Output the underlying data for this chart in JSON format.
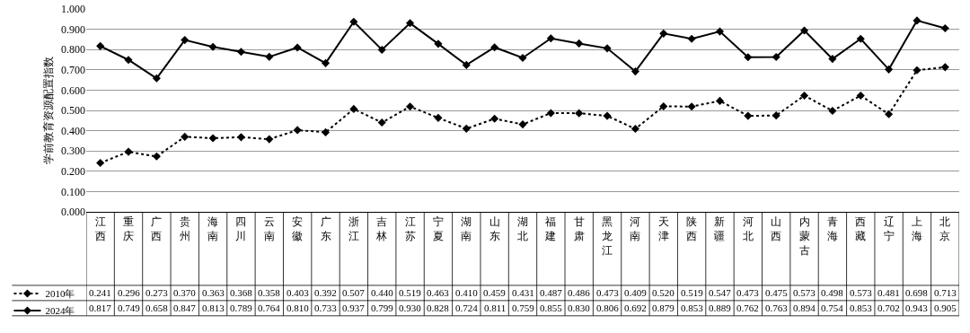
{
  "chart_data": {
    "type": "line",
    "ylabel": "学前教育资源配置指数",
    "categories": [
      "江西",
      "重庆",
      "广西",
      "贵州",
      "海南",
      "四川",
      "云南",
      "安徽",
      "广东",
      "浙江",
      "吉林",
      "江苏",
      "宁夏",
      "湖南",
      "山东",
      "湖北",
      "福建",
      "甘肃",
      "黑龙江",
      "河南",
      "天津",
      "陕西",
      "新疆",
      "河北",
      "山西",
      "内蒙古",
      "青海",
      "西藏",
      "辽宁",
      "上海",
      "北京"
    ],
    "series": [
      {
        "name": "2010年",
        "color": "#000000",
        "line_style": "dotted",
        "values": [
          0.241,
          0.296,
          0.273,
          0.37,
          0.363,
          0.368,
          0.358,
          0.403,
          0.392,
          0.507,
          0.44,
          0.519,
          0.463,
          0.41,
          0.459,
          0.431,
          0.487,
          0.486,
          0.473,
          0.409,
          0.52,
          0.519,
          0.547,
          0.473,
          0.475,
          0.573,
          0.498,
          0.573,
          0.481,
          0.698,
          0.713
        ],
        "value_labels": [
          "0.241",
          "0.296",
          "0.273",
          "0.370",
          "0.363",
          "0.368",
          "0.358",
          "0.403",
          "0.392",
          "0.507",
          "0.440",
          "0.519",
          "0.463",
          "0.410",
          "0.459",
          "0.431",
          "0.487",
          "0.486",
          "0.473",
          "0.409",
          "0.520",
          "0.519",
          "0.547",
          "0.473",
          "0.475",
          "0.573",
          "0.498",
          "0.573",
          "0.481",
          "0.698",
          "0.713"
        ]
      },
      {
        "name": "2024年",
        "color": "#000000",
        "line_style": "solid",
        "values": [
          0.817,
          0.749,
          0.658,
          0.847,
          0.813,
          0.789,
          0.764,
          0.81,
          0.733,
          0.937,
          0.799,
          0.93,
          0.828,
          0.724,
          0.811,
          0.759,
          0.855,
          0.83,
          0.806,
          0.692,
          0.879,
          0.853,
          0.889,
          0.762,
          0.763,
          0.894,
          0.754,
          0.853,
          0.702,
          0.943,
          0.905
        ],
        "value_labels": [
          "0.817",
          "0.749",
          "0.658",
          "0.847",
          "0.813",
          "0.789",
          "0.764",
          "0.810",
          "0.733",
          "0.937",
          "0.799",
          "0.930",
          "0.828",
          "0.724",
          "0.811",
          "0.759",
          "0.855",
          "0.830",
          "0.806",
          "0.692",
          "0.879",
          "0.853",
          "0.889",
          "0.762",
          "0.763",
          "0.894",
          "0.754",
          "0.853",
          "0.702",
          "0.943",
          "0.905"
        ]
      }
    ],
    "ylim": [
      0,
      1
    ],
    "yticks": [
      {
        "value": 0,
        "label": "0.000"
      },
      {
        "value": 0.1,
        "label": "0.100"
      },
      {
        "value": 0.2,
        "label": "0.200"
      },
      {
        "value": 0.3,
        "label": "0.300"
      },
      {
        "value": 0.4,
        "label": "0.400"
      },
      {
        "value": 0.5,
        "label": "0.500"
      },
      {
        "value": 0.6,
        "label": "0.600"
      },
      {
        "value": 0.7,
        "label": "0.700"
      },
      {
        "value": 0.8,
        "label": "0.800"
      },
      {
        "value": 0.9,
        "label": "0.900"
      },
      {
        "value": 1,
        "label": "1.000"
      }
    ],
    "grid": "y",
    "legend": "bottom left",
    "marker": "diamond"
  }
}
